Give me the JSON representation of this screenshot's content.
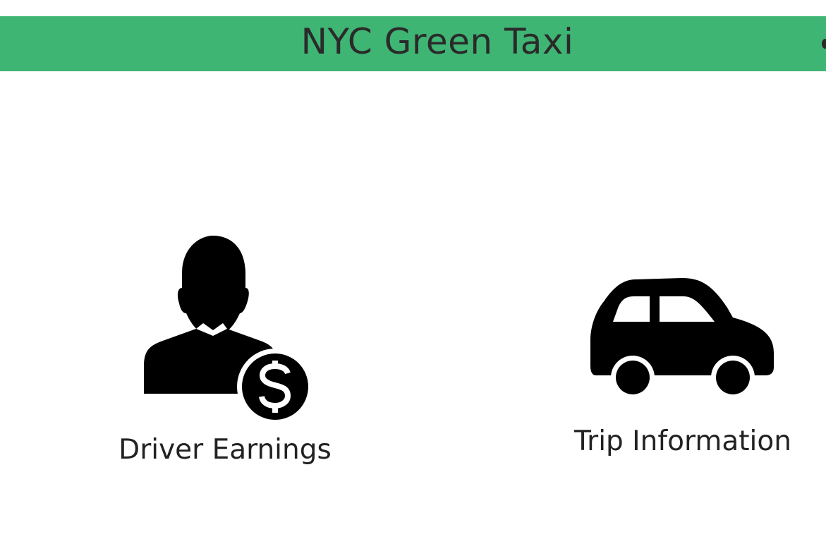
{
  "header": {
    "title": "NYC Green Taxi",
    "background_color": "#3fb574"
  },
  "navigation": [
    {
      "label": "Driver Earnings",
      "icon": "driver-earnings-icon"
    },
    {
      "label": "Trip Information",
      "icon": "car-icon"
    }
  ]
}
